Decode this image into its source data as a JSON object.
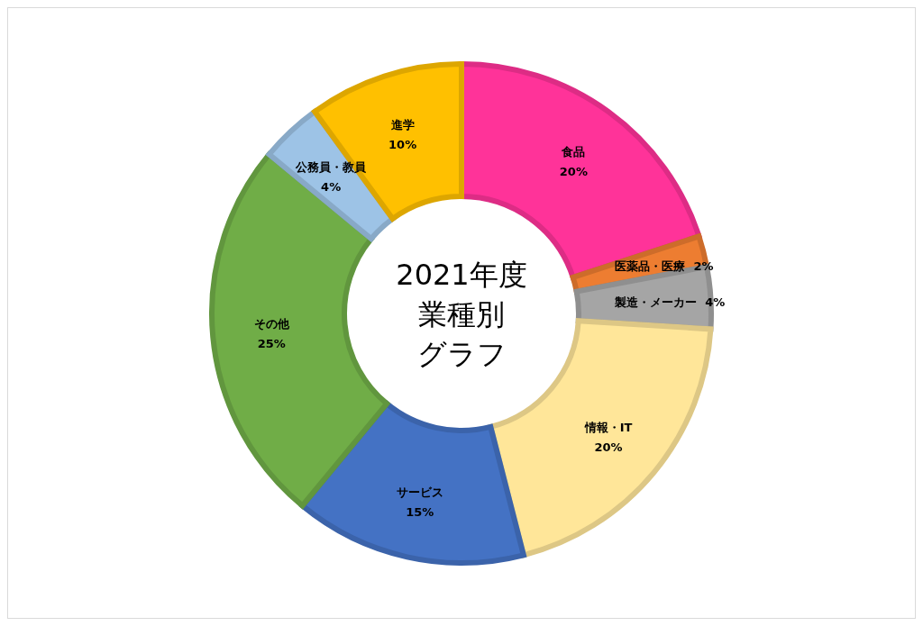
{
  "chart_data": {
    "type": "donut",
    "title": "2021年度",
    "subtitle": "業種別グラフ",
    "categories": [
      "食品",
      "医薬品・医療",
      "製造・メーカー",
      "情報・IT",
      "サービス",
      "その他",
      "公務員・教員",
      "進学"
    ],
    "values": [
      20,
      2,
      4,
      20,
      15,
      25,
      4,
      10
    ],
    "value_labels": [
      "20%",
      "2%",
      "4%",
      "20%",
      "15%",
      "25%",
      "4%",
      "10%"
    ],
    "colors": [
      "#ff3399",
      "#ed7d31",
      "#a5a5a5",
      "#ffe699",
      "#4472c4",
      "#70ad47",
      "#9dc3e6",
      "#ffc000"
    ]
  }
}
